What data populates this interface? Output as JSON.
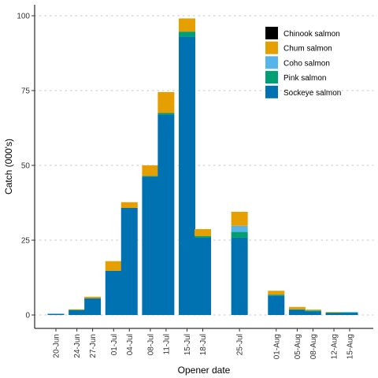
{
  "chart_data": {
    "type": "bar",
    "stacked": true,
    "xlabel": "Opener date",
    "ylabel": "Catch (000's)",
    "ylim": [
      0,
      100
    ],
    "yticks": [
      0,
      25,
      50,
      75,
      100
    ],
    "grid": "horizontal dotted",
    "legend_position": "top-right",
    "categories": [
      "20-Jun",
      "24-Jun",
      "27-Jun",
      "01-Jul",
      "04-Jul",
      "08-Jul",
      "11-Jul",
      "15-Jul",
      "18-Jul",
      "25-Jul",
      "01-Aug",
      "05-Aug",
      "08-Aug",
      "12-Aug",
      "15-Aug"
    ],
    "category_days": [
      20,
      24,
      27,
      31,
      34,
      38,
      41,
      45,
      48,
      55,
      62,
      66,
      69,
      73,
      76
    ],
    "series": [
      {
        "name": "Sockeye salmon",
        "color": "#0072B2",
        "values": [
          0.4,
          1.6,
          5.6,
          14.8,
          35.8,
          46.2,
          67.0,
          93.0,
          25.8,
          25.8,
          6.5,
          1.8,
          1.2,
          0.7,
          0.7
        ]
      },
      {
        "name": "Pink salmon",
        "color": "#009E73",
        "values": [
          0,
          0.1,
          0,
          0,
          0,
          0.3,
          0.5,
          1.7,
          0.6,
          2.0,
          0.3,
          0.1,
          0.3,
          0.1,
          0.1
        ]
      },
      {
        "name": "Coho salmon",
        "color": "#56B4E9",
        "values": [
          0,
          0,
          0,
          0,
          0,
          0,
          0,
          0,
          0,
          2.0,
          0,
          0,
          0,
          0,
          0.2
        ]
      },
      {
        "name": "Chum salmon",
        "color": "#E69F00",
        "values": [
          0,
          0.2,
          0.5,
          3.2,
          1.9,
          3.5,
          7.0,
          4.4,
          2.3,
          4.7,
          1.3,
          0.8,
          0.3,
          0.2,
          0
        ]
      },
      {
        "name": "Chinook salmon",
        "color": "#000000",
        "values": [
          0,
          0,
          0,
          0,
          0,
          0,
          0,
          0,
          0,
          0,
          0,
          0,
          0,
          0,
          0
        ]
      }
    ],
    "legend_order": [
      "Chinook salmon",
      "Chum salmon",
      "Coho salmon",
      "Pink salmon",
      "Sockeye salmon"
    ]
  }
}
